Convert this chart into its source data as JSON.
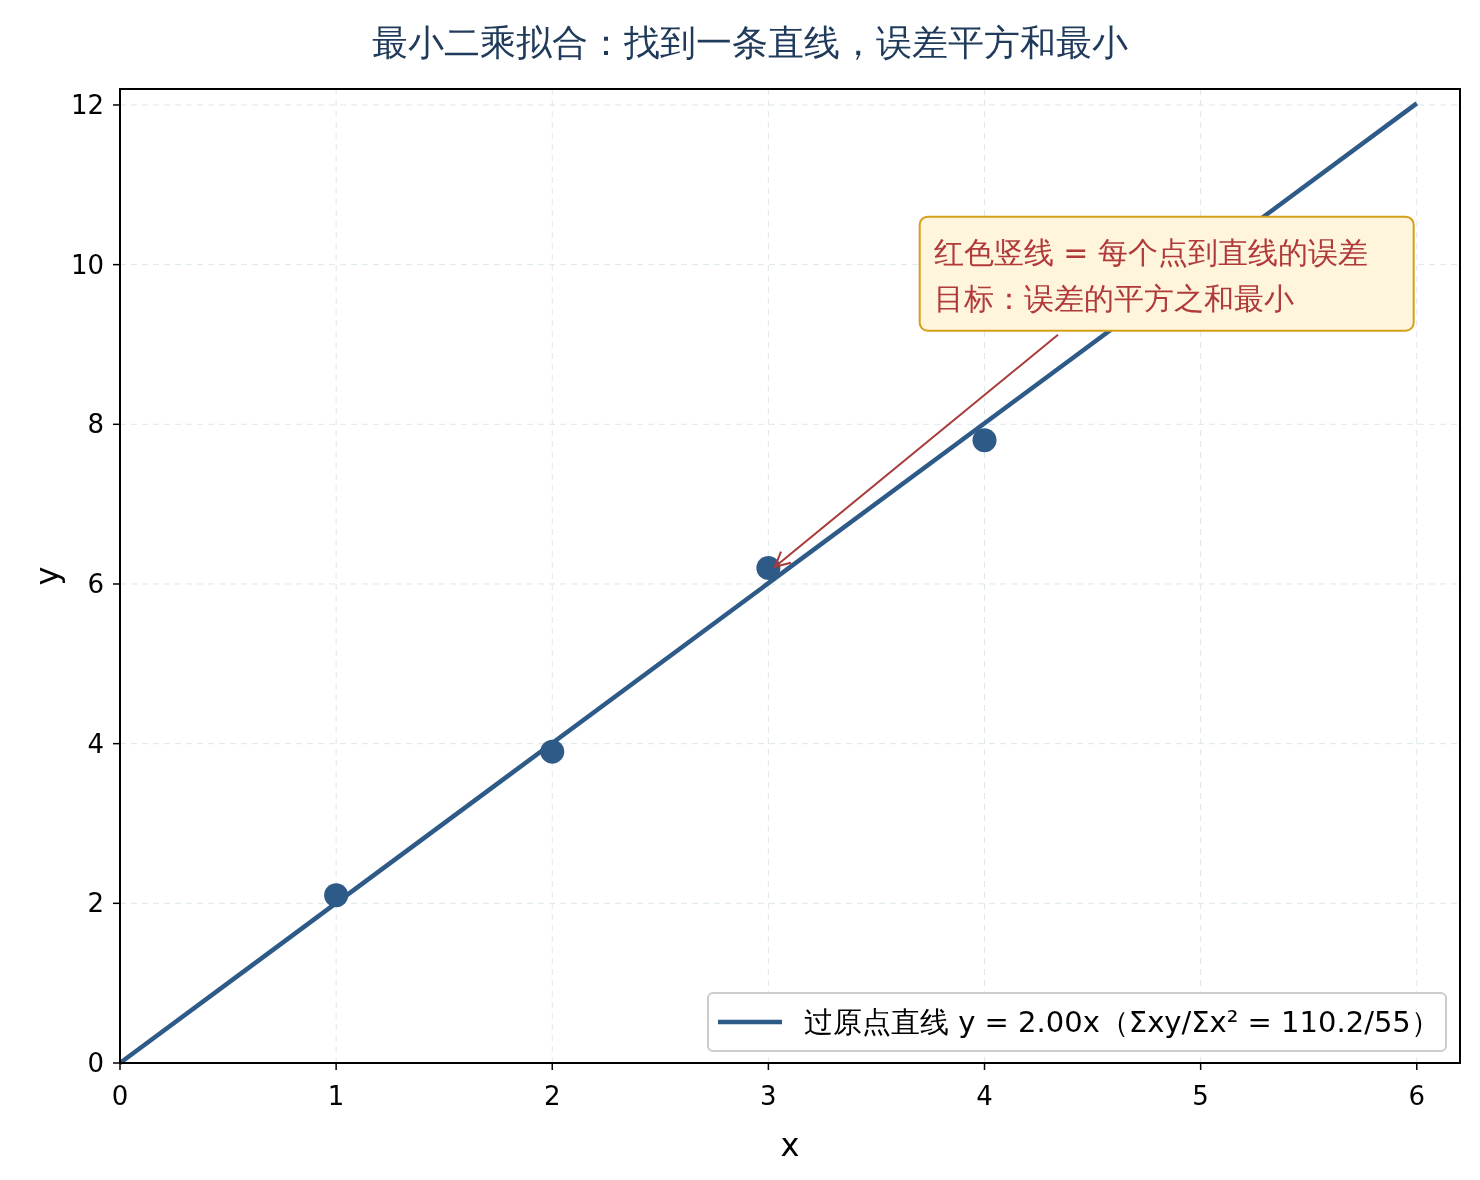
{
  "chart_data": {
    "type": "scatter",
    "title": "最小二乘拟合：找到一条直线，误差平方和最小",
    "xlabel": "x",
    "ylabel": "y",
    "xlim": [
      0,
      6.2
    ],
    "ylim": [
      0,
      12.2
    ],
    "xticks": [
      0,
      1,
      2,
      3,
      4,
      5,
      6
    ],
    "yticks": [
      0,
      2,
      4,
      6,
      8,
      10,
      12
    ],
    "grid": true,
    "legend": "bottom right",
    "series": [
      {
        "color": "#2e5a88",
        "marker": "circle",
        "x": [
          1,
          2,
          3,
          4
        ],
        "values": [
          2.1,
          3.9,
          6.2,
          7.8
        ]
      },
      {
        "type": "line",
        "name": "过原点直线 y = 2.00x（Σxy/Σx² = 110.2/55）",
        "color": "#2e5a88",
        "line_style": "solid",
        "x": [
          0,
          6
        ],
        "values": [
          0,
          12.02
        ]
      }
    ],
    "annotations": [
      "红色竖线 = 每个点到直线的误差",
      "目标：误差的平方之和最小"
    ]
  }
}
